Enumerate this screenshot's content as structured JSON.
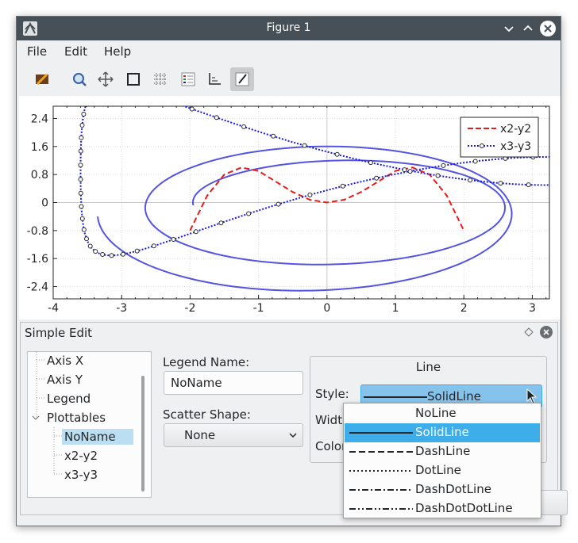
{
  "window": {
    "title": "Figure 1"
  },
  "menu": [
    "File",
    "Edit",
    "Help"
  ],
  "toolbar": {
    "icons": [
      "settings-icon",
      "zoom-icon",
      "pan-icon",
      "rect-select-icon",
      "grid-icon",
      "legend-icon",
      "axes-icon",
      "edit-icon"
    ],
    "active": "edit-icon"
  },
  "chart_data": {
    "type": "line",
    "x_ticks": [
      "-4",
      "-3",
      "-2",
      "-1",
      "0",
      "1",
      "2",
      "3"
    ],
    "y_ticks": [
      "2.4",
      "1.6",
      "0.8",
      "0",
      "-0.8",
      "-1.6",
      "-2.4"
    ],
    "xlim": [
      -4,
      3.25
    ],
    "ylim": [
      -2.75,
      2.75
    ],
    "grid": true,
    "legend_position": "top-right",
    "series": [
      {
        "name": "",
        "style": "solid",
        "color": "#5454e4",
        "kind": "spiral",
        "points": []
      },
      {
        "name": "x2-y2",
        "style": "dashed",
        "color": "#e81a1a",
        "x": [
          -2.0,
          -1.75,
          -1.5,
          -1.25,
          -1.0,
          -0.75,
          -0.5,
          -0.25,
          0.0,
          0.25,
          0.5,
          0.75,
          1.0,
          1.25,
          1.5,
          1.75,
          2.0
        ],
        "y": [
          -0.8,
          0.2,
          0.8,
          1.0,
          0.9,
          0.6,
          0.3,
          0.08,
          0.0,
          0.08,
          0.3,
          0.6,
          0.9,
          1.0,
          0.8,
          0.2,
          -0.8
        ]
      },
      {
        "name": "x3-y3",
        "style": "dotted-circles",
        "color": "#1a1ae0",
        "kind": "loop",
        "points": []
      }
    ]
  },
  "legend": [
    {
      "name": "x2-y2",
      "color": "#e81a1a",
      "style": "dashed"
    },
    {
      "name": "x3-y3",
      "color": "#1a1ae0",
      "style": "dotted"
    }
  ],
  "dock": {
    "title": "Simple Edit",
    "tree": {
      "items": [
        "Axis X",
        "Axis Y",
        "Legend",
        "Plottables"
      ],
      "children": [
        "NoName",
        "x2-y2",
        "x3-y3"
      ],
      "selected": "NoName"
    },
    "legend_name_label": "Legend Name:",
    "legend_name_value": "NoName",
    "scatter_shape_label": "Scatter Shape:",
    "scatter_shape_value": "None",
    "line_group_title": "Line",
    "style_label": "Style:",
    "style_value": "SolidLine",
    "width_label": "Width:",
    "color_label": "Color:",
    "style_options": [
      "NoLine",
      "SolidLine",
      "DashLine",
      "DotLine",
      "DashDotLine",
      "DashDotDotLine"
    ],
    "style_selected": "SolidLine"
  }
}
